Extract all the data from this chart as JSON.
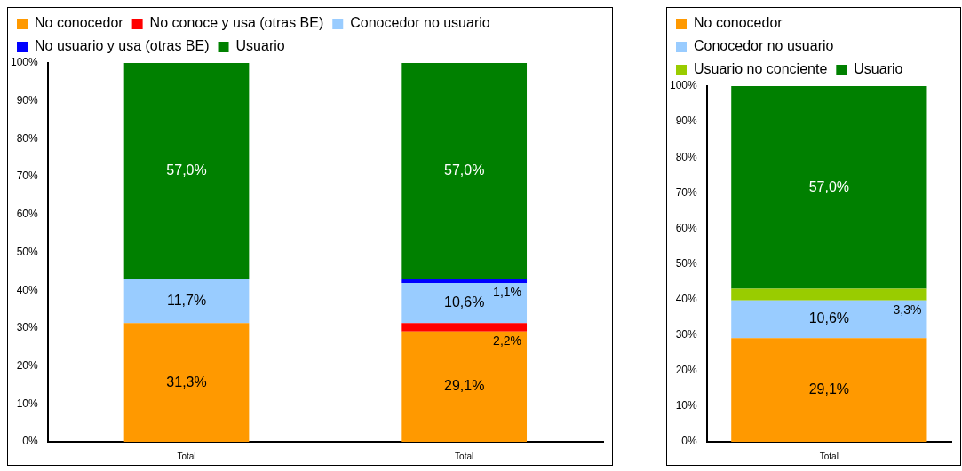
{
  "chart_data": [
    {
      "type": "bar",
      "stacked": true,
      "legend": "top",
      "categories": [
        "Total",
        "Total"
      ],
      "ylim": [
        0,
        100
      ],
      "yticks": [
        {
          "value": 0,
          "label": "0%"
        },
        {
          "value": 10,
          "label": "10%"
        },
        {
          "value": 20,
          "label": "20%"
        },
        {
          "value": 30,
          "label": "30%"
        },
        {
          "value": 40,
          "label": "40%"
        },
        {
          "value": 50,
          "label": "50%"
        },
        {
          "value": 60,
          "label": "60%"
        },
        {
          "value": 70,
          "label": "70%"
        },
        {
          "value": 80,
          "label": "80%"
        },
        {
          "value": 90,
          "label": "90%"
        },
        {
          "value": 100,
          "label": "100%"
        }
      ],
      "series": [
        {
          "name": "No conocedor",
          "color": "#ff9900",
          "values": [
            31.3,
            29.1
          ],
          "value_labels": [
            "31,3%",
            "29,1%"
          ]
        },
        {
          "name": "No conoce y usa (otras BE)",
          "color": "#ff0000",
          "values": [
            null,
            2.2
          ],
          "value_labels": [
            null,
            "2,2%"
          ]
        },
        {
          "name": "Conocedor no usuario",
          "color": "#99ccff",
          "values": [
            11.7,
            10.6
          ],
          "value_labels": [
            "11,7%",
            "10,6%"
          ]
        },
        {
          "name": "No usuario y usa (otras BE)",
          "color": "#0000ff",
          "values": [
            null,
            1.1
          ],
          "value_labels": [
            null,
            "1,1%"
          ]
        },
        {
          "name": "Usuario",
          "color": "#008000",
          "values": [
            57.0,
            57.0
          ],
          "value_labels": [
            "57,0%",
            "57,0%"
          ]
        }
      ]
    },
    {
      "type": "bar",
      "stacked": true,
      "legend": "top",
      "categories": [
        "Total"
      ],
      "ylim": [
        0,
        100
      ],
      "yticks": [
        {
          "value": 0,
          "label": "0%"
        },
        {
          "value": 10,
          "label": "10%"
        },
        {
          "value": 20,
          "label": "20%"
        },
        {
          "value": 30,
          "label": "30%"
        },
        {
          "value": 40,
          "label": "40%"
        },
        {
          "value": 50,
          "label": "50%"
        },
        {
          "value": 60,
          "label": "60%"
        },
        {
          "value": 70,
          "label": "70%"
        },
        {
          "value": 80,
          "label": "80%"
        },
        {
          "value": 90,
          "label": "90%"
        },
        {
          "value": 100,
          "label": "100%"
        }
      ],
      "series": [
        {
          "name": "No conocedor",
          "color": "#ff9900",
          "values": [
            29.1
          ],
          "value_labels": [
            "29,1%"
          ]
        },
        {
          "name": "Conocedor no usuario",
          "color": "#99ccff",
          "values": [
            10.6
          ],
          "value_labels": [
            "10,6%"
          ]
        },
        {
          "name": "Usuario no conciente",
          "color": "#99cc00",
          "values": [
            3.3
          ],
          "value_labels": [
            "3,3%"
          ]
        },
        {
          "name": "Usuario",
          "color": "#008000",
          "values": [
            57.0
          ],
          "value_labels": [
            "57,0%"
          ]
        }
      ]
    }
  ]
}
